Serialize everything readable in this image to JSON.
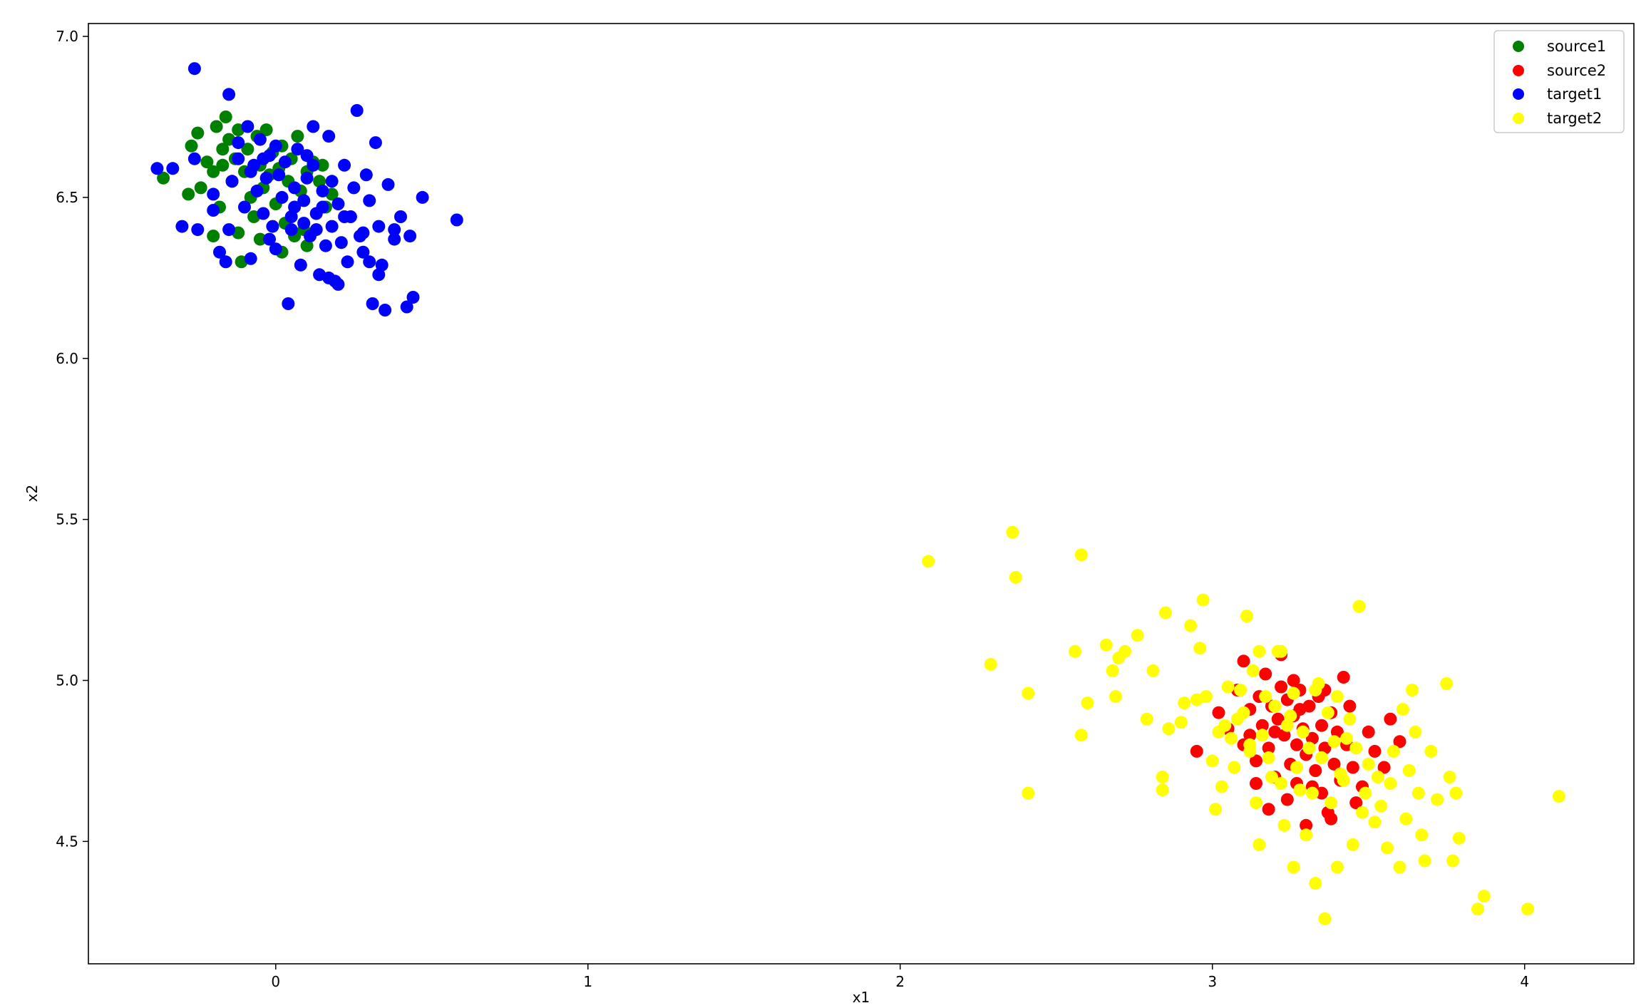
{
  "chart_data": {
    "type": "scatter",
    "title": "",
    "xlabel": "x1",
    "ylabel": "x2",
    "xlim": [
      -0.6,
      4.35
    ],
    "ylim": [
      4.12,
      7.04
    ],
    "xticks": [
      0,
      1,
      2,
      3,
      4
    ],
    "xtick_labels": [
      "0",
      "1",
      "2",
      "3",
      "4"
    ],
    "yticks": [
      4.5,
      5.0,
      5.5,
      6.0,
      6.5,
      7.0
    ],
    "ytick_labels": [
      "4.5",
      "5.0",
      "5.5",
      "6.0",
      "6.5",
      "7.0"
    ],
    "grid": false,
    "legend": {
      "position": "top-right",
      "entries": [
        "source1",
        "source2",
        "target1",
        "target2"
      ]
    },
    "series": [
      {
        "name": "source1",
        "color": "#008000",
        "points": [
          [
            -0.36,
            6.56
          ],
          [
            -0.28,
            6.51
          ],
          [
            -0.27,
            6.66
          ],
          [
            -0.25,
            6.7
          ],
          [
            -0.24,
            6.53
          ],
          [
            -0.22,
            6.61
          ],
          [
            -0.2,
            6.58
          ],
          [
            -0.19,
            6.72
          ],
          [
            -0.18,
            6.47
          ],
          [
            -0.17,
            6.65
          ],
          [
            -0.16,
            6.75
          ],
          [
            -0.15,
            6.68
          ],
          [
            -0.14,
            6.55
          ],
          [
            -0.13,
            6.62
          ],
          [
            -0.12,
            6.71
          ],
          [
            -0.12,
            6.39
          ],
          [
            -0.11,
            6.3
          ],
          [
            -0.1,
            6.58
          ],
          [
            -0.09,
            6.65
          ],
          [
            -0.08,
            6.5
          ],
          [
            -0.07,
            6.44
          ],
          [
            -0.06,
            6.69
          ],
          [
            -0.05,
            6.6
          ],
          [
            -0.04,
            6.53
          ],
          [
            -0.03,
            6.71
          ],
          [
            -0.02,
            6.57
          ],
          [
            -0.01,
            6.64
          ],
          [
            0.0,
            6.48
          ],
          [
            0.01,
            6.59
          ],
          [
            0.02,
            6.66
          ],
          [
            0.03,
            6.42
          ],
          [
            0.04,
            6.55
          ],
          [
            0.05,
            6.62
          ],
          [
            0.06,
            6.38
          ],
          [
            0.07,
            6.69
          ],
          [
            0.08,
            6.52
          ],
          [
            0.09,
            6.4
          ],
          [
            0.1,
            6.58
          ],
          [
            0.12,
            6.61
          ],
          [
            0.14,
            6.55
          ],
          [
            0.16,
            6.47
          ],
          [
            0.18,
            6.51
          ],
          [
            -0.2,
            6.38
          ],
          [
            -0.17,
            6.6
          ],
          [
            0.02,
            6.33
          ],
          [
            0.1,
            6.35
          ],
          [
            -0.05,
            6.37
          ],
          [
            0.15,
            6.6
          ]
        ]
      },
      {
        "name": "source2",
        "color": "#ff0000",
        "points": [
          [
            2.95,
            4.78
          ],
          [
            3.02,
            4.9
          ],
          [
            3.05,
            4.85
          ],
          [
            3.08,
            4.97
          ],
          [
            3.1,
            5.06
          ],
          [
            3.1,
            4.8
          ],
          [
            3.12,
            4.91
          ],
          [
            3.14,
            4.75
          ],
          [
            3.15,
            4.95
          ],
          [
            3.16,
            4.86
          ],
          [
            3.17,
            5.02
          ],
          [
            3.18,
            4.79
          ],
          [
            3.19,
            4.92
          ],
          [
            3.2,
            4.7
          ],
          [
            3.21,
            4.88
          ],
          [
            3.22,
            4.98
          ],
          [
            3.22,
            5.08
          ],
          [
            3.23,
            4.83
          ],
          [
            3.24,
            4.94
          ],
          [
            3.25,
            4.74
          ],
          [
            3.26,
            4.89
          ],
          [
            3.27,
            4.8
          ],
          [
            3.27,
            4.68
          ],
          [
            3.28,
            4.97
          ],
          [
            3.29,
            4.85
          ],
          [
            3.3,
            4.77
          ],
          [
            3.3,
            4.55
          ],
          [
            3.31,
            4.92
          ],
          [
            3.32,
            4.82
          ],
          [
            3.33,
            4.72
          ],
          [
            3.34,
            4.95
          ],
          [
            3.35,
            4.86
          ],
          [
            3.35,
            4.65
          ],
          [
            3.36,
            4.79
          ],
          [
            3.37,
            4.59
          ],
          [
            3.38,
            4.9
          ],
          [
            3.39,
            4.74
          ],
          [
            3.4,
            4.84
          ],
          [
            3.41,
            4.69
          ],
          [
            3.42,
            5.01
          ],
          [
            3.43,
            4.8
          ],
          [
            3.44,
            4.92
          ],
          [
            3.45,
            4.73
          ],
          [
            3.46,
            4.62
          ],
          [
            3.48,
            4.67
          ],
          [
            3.5,
            4.84
          ],
          [
            3.52,
            4.78
          ],
          [
            3.55,
            4.73
          ],
          [
            3.57,
            4.88
          ],
          [
            3.6,
            4.81
          ],
          [
            3.18,
            4.6
          ],
          [
            3.24,
            4.63
          ],
          [
            3.32,
            4.67
          ],
          [
            3.14,
            4.68
          ],
          [
            3.38,
            4.57
          ],
          [
            3.2,
            4.84
          ],
          [
            3.28,
            4.91
          ],
          [
            3.12,
            4.83
          ],
          [
            3.26,
            5.0
          ],
          [
            3.36,
            4.97
          ]
        ]
      },
      {
        "name": "target1",
        "color": "#0000ff",
        "points": [
          [
            -0.26,
            6.9
          ],
          [
            -0.15,
            6.82
          ],
          [
            -0.38,
            6.59
          ],
          [
            -0.33,
            6.59
          ],
          [
            -0.3,
            6.41
          ],
          [
            -0.25,
            6.4
          ],
          [
            -0.26,
            6.62
          ],
          [
            -0.2,
            6.51
          ],
          [
            -0.18,
            6.33
          ],
          [
            -0.16,
            6.3
          ],
          [
            -0.15,
            6.4
          ],
          [
            -0.14,
            6.55
          ],
          [
            -0.12,
            6.67
          ],
          [
            -0.1,
            6.47
          ],
          [
            -0.09,
            6.72
          ],
          [
            -0.08,
            6.31
          ],
          [
            -0.07,
            6.6
          ],
          [
            -0.06,
            6.52
          ],
          [
            -0.05,
            6.68
          ],
          [
            -0.04,
            6.45
          ],
          [
            -0.03,
            6.56
          ],
          [
            -0.02,
            6.63
          ],
          [
            -0.01,
            6.41
          ],
          [
            0.0,
            6.34
          ],
          [
            0.01,
            6.57
          ],
          [
            0.02,
            6.5
          ],
          [
            0.03,
            6.61
          ],
          [
            0.04,
            6.17
          ],
          [
            0.05,
            6.44
          ],
          [
            0.06,
            6.53
          ],
          [
            0.07,
            6.65
          ],
          [
            0.08,
            6.29
          ],
          [
            0.09,
            6.49
          ],
          [
            0.1,
            6.56
          ],
          [
            0.11,
            6.38
          ],
          [
            0.12,
            6.6
          ],
          [
            0.13,
            6.45
          ],
          [
            0.14,
            6.26
          ],
          [
            0.15,
            6.52
          ],
          [
            0.16,
            6.35
          ],
          [
            0.17,
            6.69
          ],
          [
            0.18,
            6.41
          ],
          [
            0.19,
            6.24
          ],
          [
            0.2,
            6.48
          ],
          [
            0.21,
            6.36
          ],
          [
            0.22,
            6.6
          ],
          [
            0.23,
            6.3
          ],
          [
            0.24,
            6.44
          ],
          [
            0.25,
            6.53
          ],
          [
            0.26,
            6.77
          ],
          [
            0.27,
            6.38
          ],
          [
            0.28,
            6.33
          ],
          [
            0.29,
            6.57
          ],
          [
            0.3,
            6.49
          ],
          [
            0.31,
            6.17
          ],
          [
            0.32,
            6.67
          ],
          [
            0.33,
            6.41
          ],
          [
            0.34,
            6.29
          ],
          [
            0.35,
            6.15
          ],
          [
            0.36,
            6.54
          ],
          [
            0.38,
            6.37
          ],
          [
            0.4,
            6.44
          ],
          [
            0.42,
            6.16
          ],
          [
            0.44,
            6.19
          ],
          [
            0.47,
            6.5
          ],
          [
            0.58,
            6.43
          ],
          [
            0.2,
            6.23
          ],
          [
            0.17,
            6.25
          ],
          [
            0.1,
            6.63
          ],
          [
            -0.12,
            6.62
          ],
          [
            -0.2,
            6.46
          ],
          [
            0.13,
            6.4
          ],
          [
            0.09,
            6.42
          ],
          [
            0.05,
            6.4
          ],
          [
            -0.02,
            6.37
          ],
          [
            0.22,
            6.44
          ],
          [
            0.28,
            6.39
          ],
          [
            0.15,
            6.47
          ],
          [
            0.0,
            6.66
          ],
          [
            -0.08,
            6.58
          ],
          [
            0.3,
            6.3
          ],
          [
            0.33,
            6.26
          ],
          [
            0.38,
            6.4
          ],
          [
            0.43,
            6.38
          ],
          [
            0.18,
            6.55
          ],
          [
            0.06,
            6.47
          ],
          [
            -0.04,
            6.62
          ],
          [
            0.12,
            6.72
          ]
        ]
      },
      {
        "name": "target2",
        "color": "#ffff00",
        "points": [
          [
            2.09,
            5.37
          ],
          [
            2.36,
            5.46
          ],
          [
            2.37,
            5.32
          ],
          [
            2.58,
            5.39
          ],
          [
            2.29,
            5.05
          ],
          [
            2.41,
            4.96
          ],
          [
            2.41,
            4.65
          ],
          [
            2.56,
            5.09
          ],
          [
            2.58,
            4.83
          ],
          [
            2.6,
            4.93
          ],
          [
            2.66,
            5.11
          ],
          [
            2.68,
            5.03
          ],
          [
            2.69,
            4.95
          ],
          [
            2.7,
            5.07
          ],
          [
            2.72,
            5.09
          ],
          [
            2.76,
            5.14
          ],
          [
            2.79,
            4.88
          ],
          [
            2.81,
            5.03
          ],
          [
            2.84,
            4.7
          ],
          [
            2.84,
            4.66
          ],
          [
            2.85,
            5.21
          ],
          [
            2.86,
            4.85
          ],
          [
            2.9,
            4.87
          ],
          [
            2.91,
            4.93
          ],
          [
            2.93,
            5.17
          ],
          [
            2.95,
            4.94
          ],
          [
            2.96,
            5.1
          ],
          [
            2.97,
            5.25
          ],
          [
            3.0,
            4.75
          ],
          [
            3.01,
            4.6
          ],
          [
            3.03,
            4.67
          ],
          [
            3.05,
            4.98
          ],
          [
            3.06,
            4.82
          ],
          [
            3.08,
            4.88
          ],
          [
            3.11,
            5.2
          ],
          [
            3.12,
            4.78
          ],
          [
            3.14,
            4.62
          ],
          [
            3.15,
            4.49
          ],
          [
            3.17,
            4.95
          ],
          [
            3.19,
            4.7
          ],
          [
            3.21,
            5.09
          ],
          [
            3.23,
            4.55
          ],
          [
            3.24,
            4.86
          ],
          [
            3.26,
            4.42
          ],
          [
            3.28,
            4.66
          ],
          [
            3.3,
            4.52
          ],
          [
            3.31,
            4.79
          ],
          [
            3.33,
            4.37
          ],
          [
            3.34,
            4.99
          ],
          [
            3.36,
            4.26
          ],
          [
            3.38,
            4.62
          ],
          [
            3.4,
            4.42
          ],
          [
            3.42,
            4.69
          ],
          [
            3.44,
            4.88
          ],
          [
            3.45,
            4.49
          ],
          [
            3.47,
            5.23
          ],
          [
            3.48,
            4.59
          ],
          [
            3.5,
            4.74
          ],
          [
            3.52,
            4.56
          ],
          [
            3.54,
            4.61
          ],
          [
            3.56,
            4.48
          ],
          [
            3.57,
            4.68
          ],
          [
            3.58,
            4.78
          ],
          [
            3.6,
            4.42
          ],
          [
            3.61,
            4.91
          ],
          [
            3.62,
            4.57
          ],
          [
            3.63,
            4.72
          ],
          [
            3.64,
            4.97
          ],
          [
            3.65,
            4.84
          ],
          [
            3.66,
            4.65
          ],
          [
            3.67,
            4.52
          ],
          [
            3.68,
            4.44
          ],
          [
            3.7,
            4.78
          ],
          [
            3.72,
            4.63
          ],
          [
            3.75,
            4.99
          ],
          [
            3.76,
            4.7
          ],
          [
            3.77,
            4.44
          ],
          [
            3.78,
            4.65
          ],
          [
            3.79,
            4.51
          ],
          [
            3.85,
            4.29
          ],
          [
            3.87,
            4.33
          ],
          [
            4.01,
            4.29
          ],
          [
            4.11,
            4.64
          ],
          [
            2.98,
            4.95
          ],
          [
            3.02,
            4.84
          ],
          [
            3.07,
            4.73
          ],
          [
            3.1,
            4.9
          ],
          [
            3.13,
            5.03
          ],
          [
            3.16,
            4.83
          ],
          [
            3.18,
            4.76
          ],
          [
            3.2,
            4.92
          ],
          [
            3.22,
            4.68
          ],
          [
            3.25,
            4.89
          ],
          [
            3.27,
            4.73
          ],
          [
            3.29,
            4.84
          ],
          [
            3.32,
            4.65
          ],
          [
            3.35,
            4.76
          ],
          [
            3.37,
            4.9
          ],
          [
            3.39,
            4.81
          ],
          [
            3.41,
            4.71
          ],
          [
            3.43,
            4.82
          ],
          [
            3.46,
            4.79
          ],
          [
            3.49,
            4.65
          ],
          [
            3.53,
            4.7
          ],
          [
            3.15,
            5.09
          ],
          [
            3.22,
            5.09
          ],
          [
            3.09,
            4.97
          ],
          [
            3.26,
            4.96
          ],
          [
            3.33,
            4.97
          ],
          [
            3.4,
            4.95
          ],
          [
            3.04,
            4.86
          ],
          [
            3.12,
            4.8
          ]
        ]
      }
    ]
  }
}
